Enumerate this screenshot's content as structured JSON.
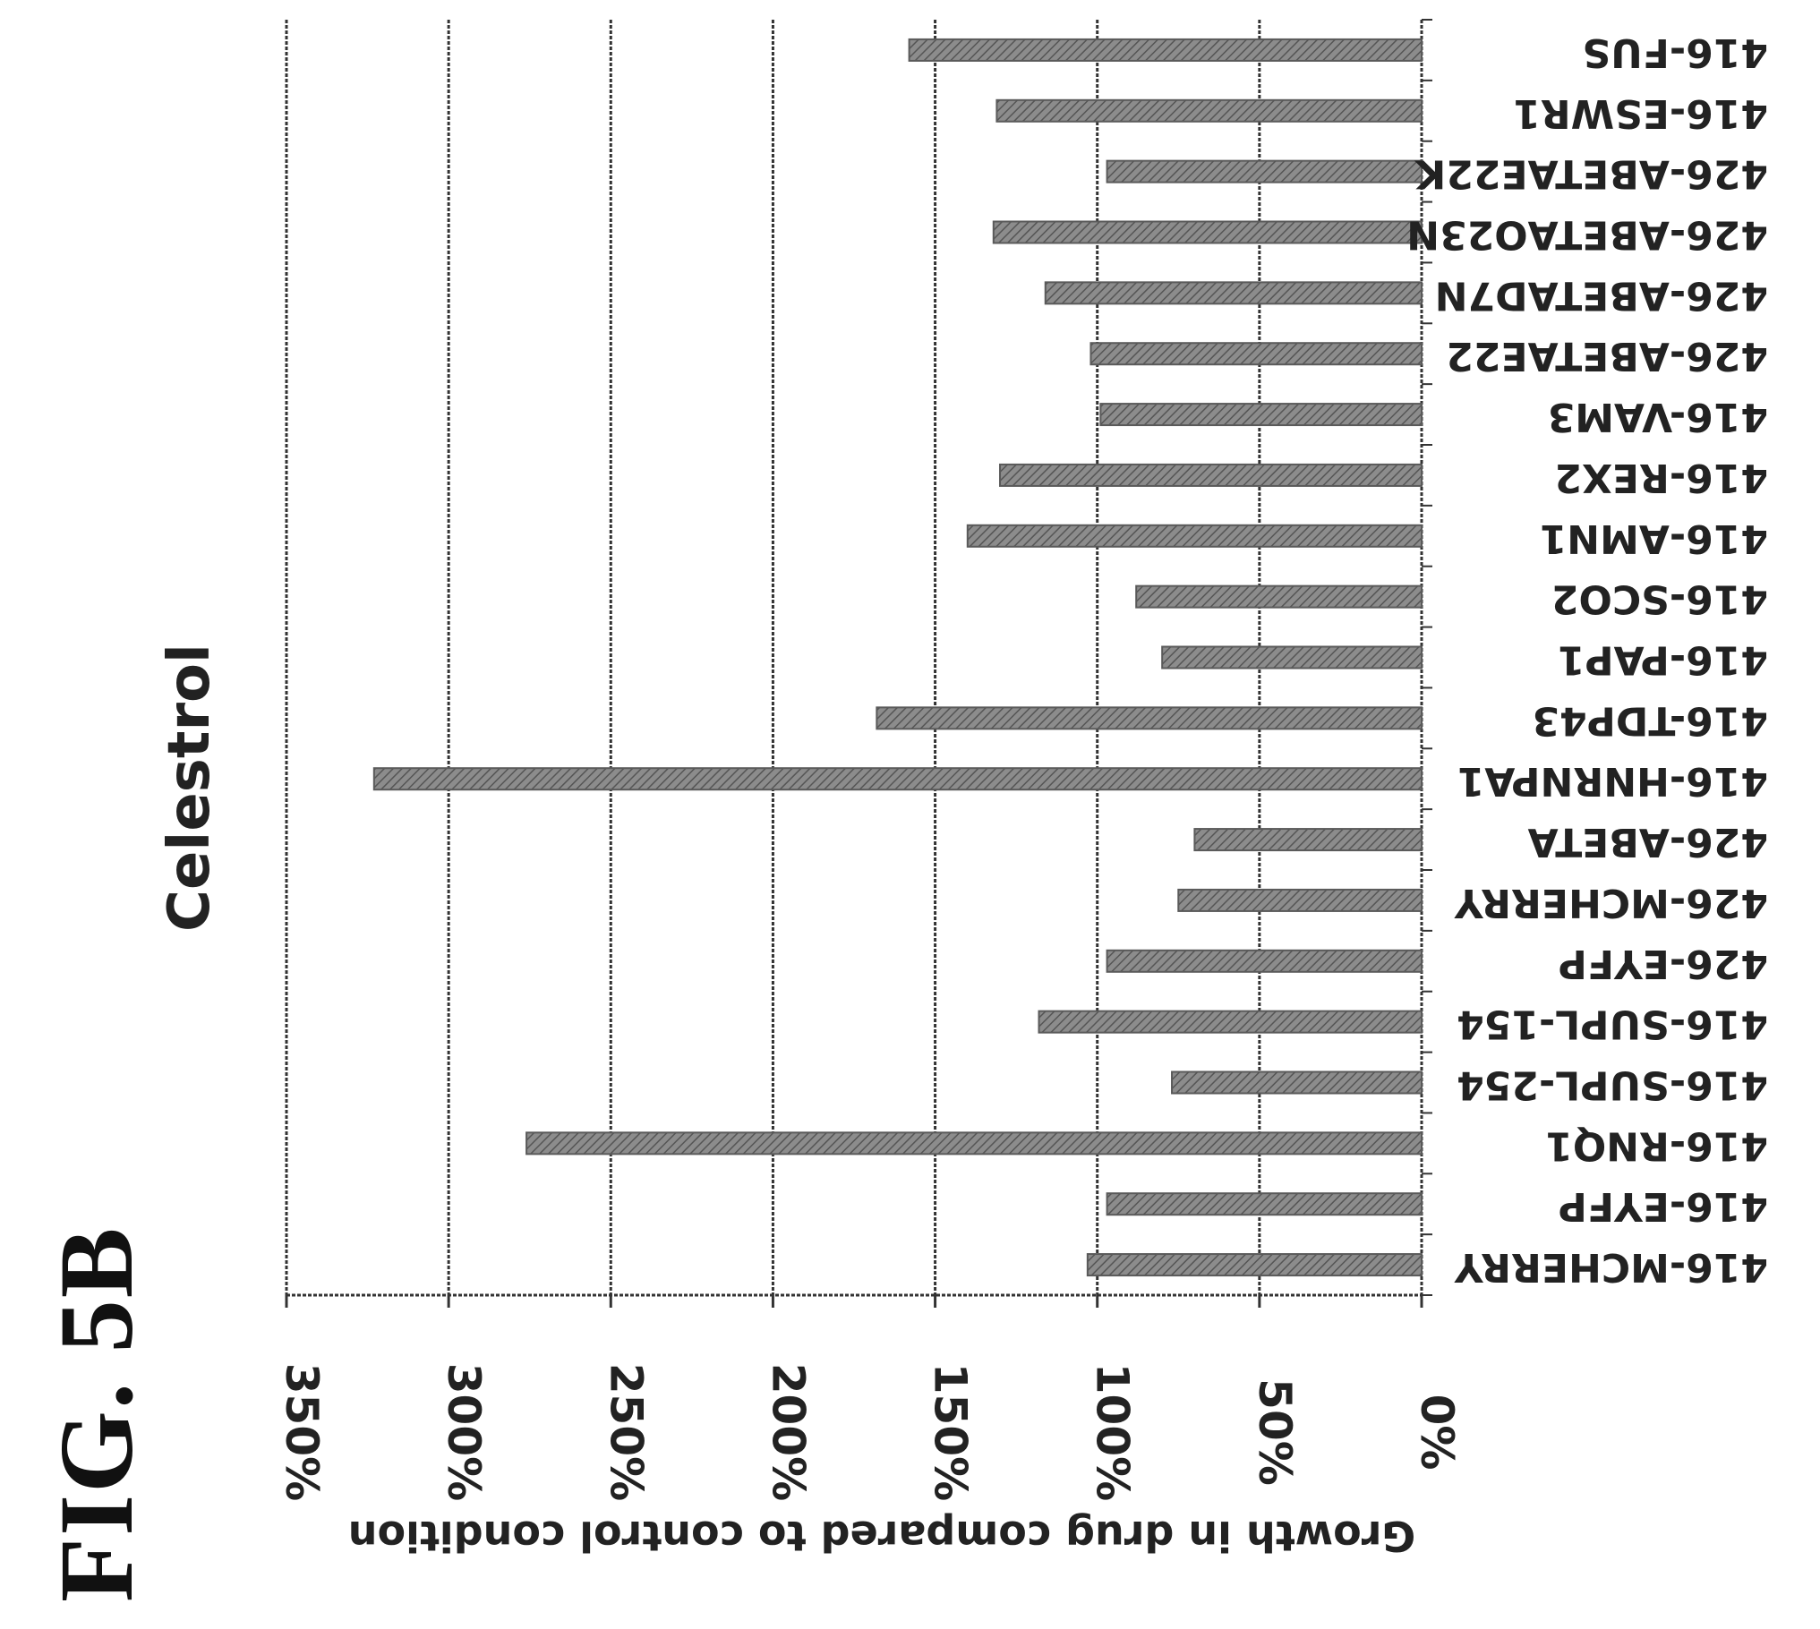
{
  "figure_label": "FIG. 5B",
  "colors": {
    "bar_fill": "#8c8c8c",
    "bar_hatch": "#5a5a5a",
    "grid": "#333333",
    "text": "#222222"
  },
  "chart_data": {
    "type": "bar",
    "orientation": "horizontal",
    "title": "Celestrol",
    "xlabel": "",
    "ylabel": "Growth in drug compared to control condition",
    "ylim": [
      0,
      350
    ],
    "tick_values": [
      0,
      50,
      100,
      150,
      200,
      250,
      300,
      350
    ],
    "tick_labels": [
      "0%",
      "50%",
      "100%",
      "150%",
      "200%",
      "250%",
      "300%",
      "350%"
    ],
    "grid": true,
    "bar_pattern": "hatched",
    "categories": [
      "416-FUS",
      "416-ESWR1",
      "426-ABETAE22K",
      "426-ABETAO23N",
      "426-ABETAD7N",
      "426-ABETAE22",
      "416-VAM3",
      "416-REX2",
      "416-AMN1",
      "416-SCO2",
      "416-PAP1",
      "416-TDP43",
      "416-HNRNPA1",
      "426-ABETA",
      "426-MCHERRY",
      "426-EYFP",
      "416-SUPL-154",
      "416-SUPL-254",
      "416-RNQ1",
      "416-EYFP",
      "416-MCHERRY"
    ],
    "values": [
      158,
      131,
      97,
      132,
      116,
      102,
      99,
      130,
      140,
      88,
      80,
      168,
      323,
      70,
      75,
      97,
      118,
      77,
      276,
      97,
      103
    ]
  }
}
